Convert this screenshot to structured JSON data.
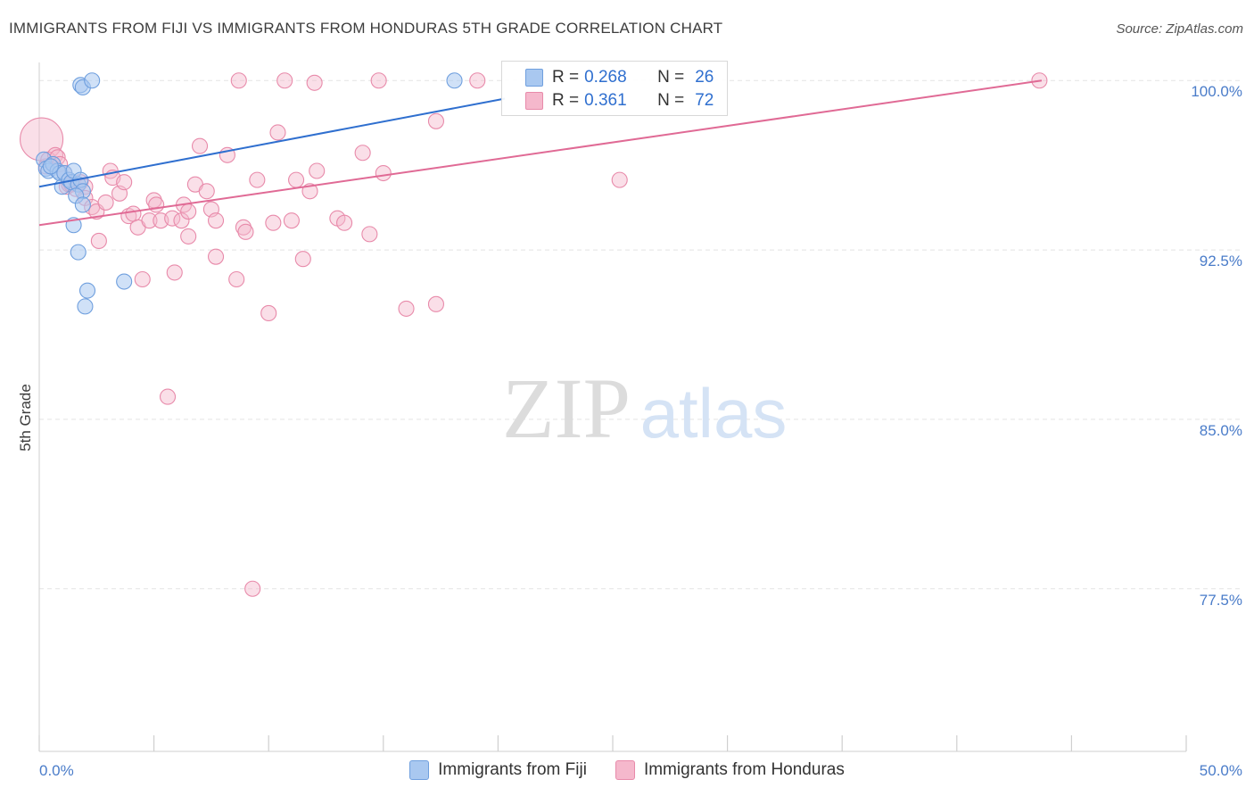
{
  "title": "IMMIGRANTS FROM FIJI VS IMMIGRANTS FROM HONDURAS 5TH GRADE CORRELATION CHART",
  "source": "Source: ZipAtlas.com",
  "watermark": {
    "zip": "ZIP",
    "atlas": "atlas"
  },
  "legend": {
    "rows": [
      {
        "r_label": "R =",
        "r_value": "0.268",
        "n_label": "N =",
        "n_value": "26"
      },
      {
        "r_label": "R =",
        "r_value": "0.361",
        "n_label": "N =",
        "n_value": "72"
      }
    ]
  },
  "bottom_legend": [
    "Immigrants from Fiji",
    "Immigrants from Honduras"
  ],
  "colors": {
    "fiji_fill": "#a9c8f0",
    "fiji_stroke": "#6f9fde",
    "fiji_line": "#2f6fcf",
    "honduras_fill": "#f5b8cc",
    "honduras_stroke": "#e88aaa",
    "honduras_line": "#e06a95",
    "axis_tick": "#4a7cc9",
    "grid": "#e3e3e3"
  },
  "chart_data": {
    "type": "scatter",
    "title": "IMMIGRANTS FROM FIJI VS IMMIGRANTS FROM HONDURAS 5TH GRADE CORRELATION CHART",
    "xlabel": "",
    "ylabel": "5th Grade",
    "xlim": [
      0,
      50
    ],
    "ylim": [
      70.3,
      100.8
    ],
    "x_tick_labels": [
      "0.0%",
      "50.0%"
    ],
    "y_ticks": [
      100,
      92.5,
      85,
      77.5
    ],
    "y_tick_labels": [
      "100.0%",
      "92.5%",
      "85.0%",
      "77.5%"
    ],
    "grid": true,
    "series": [
      {
        "name": "Immigrants from Fiji",
        "R": 0.268,
        "N": 26,
        "trend": {
          "x": [
            0,
            20.3
          ],
          "y": [
            95.3,
            99.2
          ]
        },
        "points": [
          {
            "x": 0.2,
            "y": 96.5
          },
          {
            "x": 0.3,
            "y": 96.1
          },
          {
            "x": 0.4,
            "y": 96.0
          },
          {
            "x": 0.6,
            "y": 96.3
          },
          {
            "x": 0.8,
            "y": 96.0
          },
          {
            "x": 0.9,
            "y": 95.9
          },
          {
            "x": 1.0,
            "y": 95.3
          },
          {
            "x": 1.1,
            "y": 95.9
          },
          {
            "x": 1.3,
            "y": 95.6
          },
          {
            "x": 1.4,
            "y": 95.5
          },
          {
            "x": 1.5,
            "y": 96.0
          },
          {
            "x": 1.7,
            "y": 95.4
          },
          {
            "x": 1.8,
            "y": 95.6
          },
          {
            "x": 1.9,
            "y": 95.1
          },
          {
            "x": 1.5,
            "y": 93.6
          },
          {
            "x": 1.6,
            "y": 94.9
          },
          {
            "x": 1.7,
            "y": 92.4
          },
          {
            "x": 1.9,
            "y": 94.5
          },
          {
            "x": 1.8,
            "y": 99.8
          },
          {
            "x": 1.9,
            "y": 99.7
          },
          {
            "x": 2.3,
            "y": 100.0
          },
          {
            "x": 2.1,
            "y": 90.7
          },
          {
            "x": 2.0,
            "y": 90.0
          },
          {
            "x": 3.7,
            "y": 91.1
          },
          {
            "x": 18.1,
            "y": 100.0
          },
          {
            "x": 0.5,
            "y": 96.2
          }
        ]
      },
      {
        "name": "Immigrants from Honduras",
        "R": 0.361,
        "N": 72,
        "trend": {
          "x": [
            0,
            43.7
          ],
          "y": [
            93.6,
            100.0
          ]
        },
        "points": [
          {
            "x": 0.1,
            "y": 97.4,
            "big": true
          },
          {
            "x": 0.3,
            "y": 96.2
          },
          {
            "x": 0.4,
            "y": 96.5
          },
          {
            "x": 0.7,
            "y": 96.7
          },
          {
            "x": 0.8,
            "y": 96.6
          },
          {
            "x": 0.9,
            "y": 96.3
          },
          {
            "x": 1.1,
            "y": 95.9
          },
          {
            "x": 1.2,
            "y": 95.3
          },
          {
            "x": 1.3,
            "y": 95.4
          },
          {
            "x": 1.4,
            "y": 95.4
          },
          {
            "x": 1.6,
            "y": 95.2
          },
          {
            "x": 1.8,
            "y": 95.5
          },
          {
            "x": 2.0,
            "y": 95.3
          },
          {
            "x": 2.0,
            "y": 94.8
          },
          {
            "x": 2.3,
            "y": 94.4
          },
          {
            "x": 2.5,
            "y": 94.2
          },
          {
            "x": 2.6,
            "y": 92.9
          },
          {
            "x": 2.9,
            "y": 94.6
          },
          {
            "x": 3.1,
            "y": 96.0
          },
          {
            "x": 3.2,
            "y": 95.7
          },
          {
            "x": 3.5,
            "y": 95.0
          },
          {
            "x": 3.7,
            "y": 95.5
          },
          {
            "x": 3.9,
            "y": 94.0
          },
          {
            "x": 4.1,
            "y": 94.1
          },
          {
            "x": 4.3,
            "y": 93.5
          },
          {
            "x": 4.5,
            "y": 91.2
          },
          {
            "x": 4.8,
            "y": 93.8
          },
          {
            "x": 5.0,
            "y": 94.7
          },
          {
            "x": 5.1,
            "y": 94.5
          },
          {
            "x": 5.3,
            "y": 93.8
          },
          {
            "x": 5.6,
            "y": 86.0
          },
          {
            "x": 5.8,
            "y": 93.9
          },
          {
            "x": 5.9,
            "y": 91.5
          },
          {
            "x": 6.2,
            "y": 93.8
          },
          {
            "x": 6.3,
            "y": 94.5
          },
          {
            "x": 6.5,
            "y": 94.2
          },
          {
            "x": 6.5,
            "y": 93.1
          },
          {
            "x": 6.8,
            "y": 95.4
          },
          {
            "x": 7.0,
            "y": 97.1
          },
          {
            "x": 7.3,
            "y": 95.1
          },
          {
            "x": 7.5,
            "y": 94.3
          },
          {
            "x": 7.7,
            "y": 93.8
          },
          {
            "x": 7.7,
            "y": 92.2
          },
          {
            "x": 8.2,
            "y": 96.7
          },
          {
            "x": 8.6,
            "y": 91.2
          },
          {
            "x": 8.9,
            "y": 93.5
          },
          {
            "x": 9.0,
            "y": 93.3
          },
          {
            "x": 9.3,
            "y": 77.5
          },
          {
            "x": 9.5,
            "y": 95.6
          },
          {
            "x": 10.0,
            "y": 89.7
          },
          {
            "x": 10.2,
            "y": 93.7
          },
          {
            "x": 10.4,
            "y": 97.7
          },
          {
            "x": 11.0,
            "y": 93.8
          },
          {
            "x": 11.2,
            "y": 95.6
          },
          {
            "x": 11.5,
            "y": 92.1
          },
          {
            "x": 11.8,
            "y": 95.1
          },
          {
            "x": 12.1,
            "y": 96.0
          },
          {
            "x": 13.0,
            "y": 93.9
          },
          {
            "x": 13.3,
            "y": 93.7
          },
          {
            "x": 14.1,
            "y": 96.8
          },
          {
            "x": 14.4,
            "y": 93.2
          },
          {
            "x": 15.0,
            "y": 95.9
          },
          {
            "x": 16.0,
            "y": 89.9
          },
          {
            "x": 17.3,
            "y": 90.1
          },
          {
            "x": 17.3,
            "y": 98.2
          },
          {
            "x": 8.7,
            "y": 100.0
          },
          {
            "x": 10.7,
            "y": 100.0
          },
          {
            "x": 12.0,
            "y": 99.9
          },
          {
            "x": 14.8,
            "y": 100.0
          },
          {
            "x": 19.1,
            "y": 100.0
          },
          {
            "x": 25.3,
            "y": 95.6
          },
          {
            "x": 43.6,
            "y": 100.0
          }
        ]
      }
    ]
  }
}
